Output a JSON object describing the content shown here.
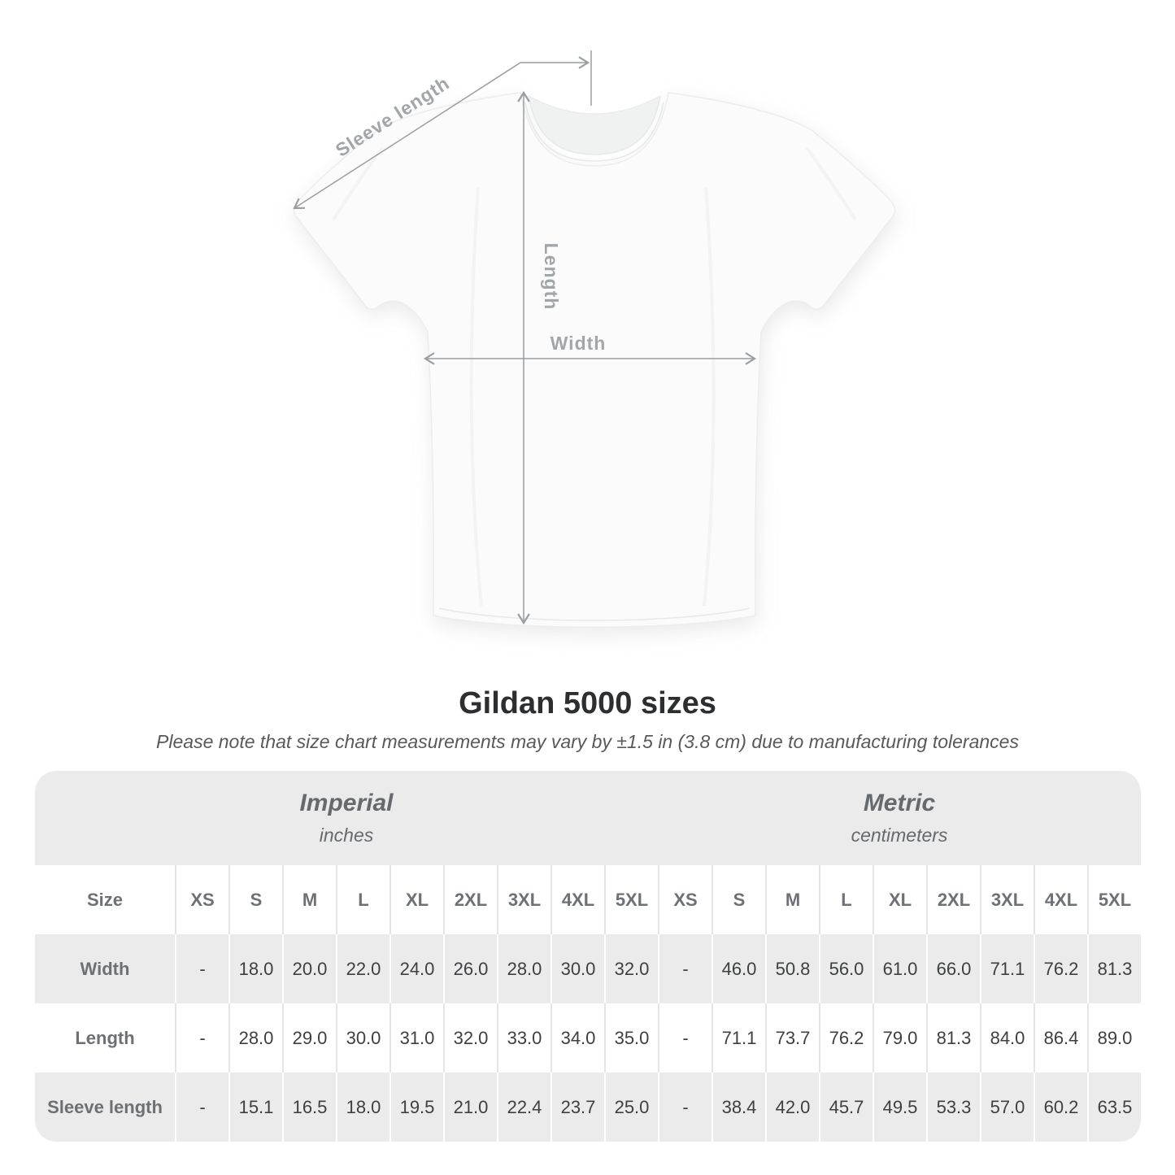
{
  "diagram": {
    "labels": {
      "sleeve_length": "Sleeve length",
      "length": "Length",
      "width": "Width"
    },
    "arrow_color": "#9a9ea1",
    "label_color": "#a2a6a9"
  },
  "title": "Gildan 5000 sizes",
  "subtitle": "Please note that size chart measurements may vary by ±1.5 in (3.8 cm) due to manufacturing tolerances",
  "table": {
    "unit_groups": [
      {
        "label": "Imperial",
        "sublabel": "inches"
      },
      {
        "label": "Metric",
        "sublabel": "centimeters"
      }
    ],
    "size_header": "Size",
    "sizes": [
      "XS",
      "S",
      "M",
      "L",
      "XL",
      "2XL",
      "3XL",
      "4XL",
      "5XL"
    ],
    "rows": [
      {
        "label": "Width",
        "imperial": [
          "-",
          "18.0",
          "20.0",
          "22.0",
          "24.0",
          "26.0",
          "28.0",
          "30.0",
          "32.0"
        ],
        "metric": [
          "-",
          "46.0",
          "50.8",
          "56.0",
          "61.0",
          "66.0",
          "71.1",
          "76.2",
          "81.3"
        ]
      },
      {
        "label": "Length",
        "imperial": [
          "-",
          "28.0",
          "29.0",
          "30.0",
          "31.0",
          "32.0",
          "33.0",
          "34.0",
          "35.0"
        ],
        "metric": [
          "-",
          "71.1",
          "73.7",
          "76.2",
          "79.0",
          "81.3",
          "84.0",
          "86.4",
          "89.0"
        ]
      },
      {
        "label": "Sleeve length",
        "imperial": [
          "-",
          "15.1",
          "16.5",
          "18.0",
          "19.5",
          "21.0",
          "22.4",
          "23.7",
          "25.0"
        ],
        "metric": [
          "-",
          "38.4",
          "42.0",
          "45.7",
          "49.5",
          "53.3",
          "57.0",
          "60.2",
          "63.5"
        ]
      }
    ],
    "stripe_color": "#ebebeb"
  },
  "chart_data": {
    "type": "table",
    "title": "Gildan 5000 sizes",
    "note": "Please note that size chart measurements may vary by ±1.5 in (3.8 cm) due to manufacturing tolerances",
    "unit_groups": [
      "Imperial (inches)",
      "Metric (centimeters)"
    ],
    "sizes": [
      "XS",
      "S",
      "M",
      "L",
      "XL",
      "2XL",
      "3XL",
      "4XL",
      "5XL"
    ],
    "measurements": [
      {
        "label": "Width",
        "imperial_inches": [
          null,
          18.0,
          20.0,
          22.0,
          24.0,
          26.0,
          28.0,
          30.0,
          32.0
        ],
        "metric_cm": [
          null,
          46.0,
          50.8,
          56.0,
          61.0,
          66.0,
          71.1,
          76.2,
          81.3
        ]
      },
      {
        "label": "Length",
        "imperial_inches": [
          null,
          28.0,
          29.0,
          30.0,
          31.0,
          32.0,
          33.0,
          34.0,
          35.0
        ],
        "metric_cm": [
          null,
          71.1,
          73.7,
          76.2,
          79.0,
          81.3,
          84.0,
          86.4,
          89.0
        ]
      },
      {
        "label": "Sleeve length",
        "imperial_inches": [
          null,
          15.1,
          16.5,
          18.0,
          19.5,
          21.0,
          22.4,
          23.7,
          25.0
        ],
        "metric_cm": [
          null,
          38.4,
          42.0,
          45.7,
          49.5,
          53.3,
          57.0,
          60.2,
          63.5
        ]
      }
    ]
  }
}
